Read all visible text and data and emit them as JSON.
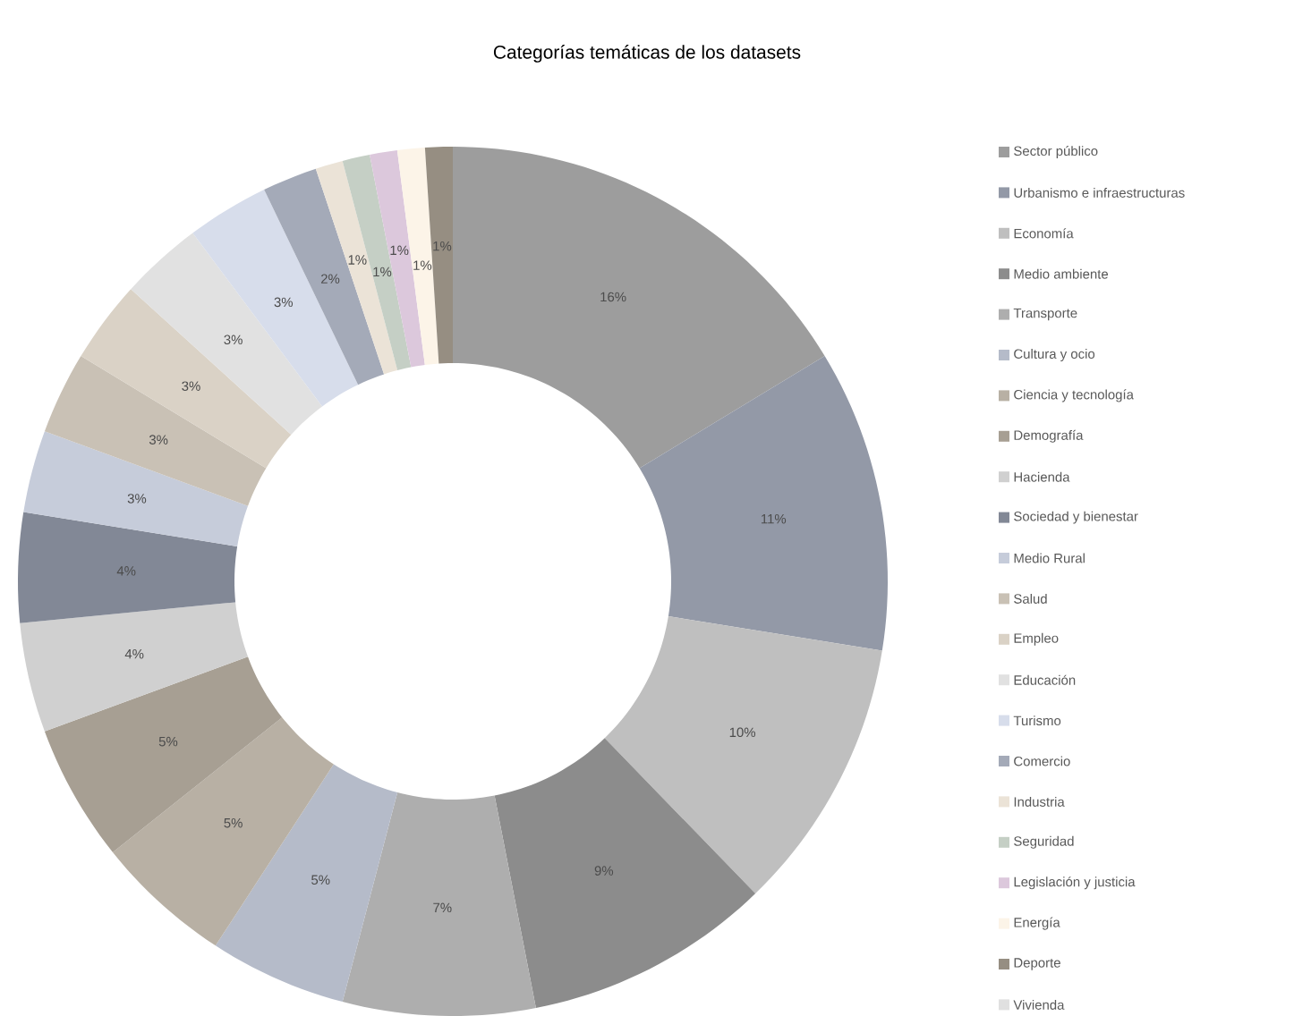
{
  "chart_data": {
    "type": "donut",
    "title": "Categorías temáticas de los datasets",
    "categories": [
      "Sector público",
      "Urbanismo e infraestructuras",
      "Economía",
      "Medio ambiente",
      "Transporte",
      "Cultura y ocio",
      "Ciencia y tecnología",
      "Demografía",
      "Hacienda",
      "Sociedad y bienestar",
      "Medio Rural",
      "Salud",
      "Empleo",
      "Educación",
      "Turismo",
      "Comercio",
      "Industria",
      "Seguridad",
      "Legislación y justicia",
      "Energía",
      "Deporte",
      "Vivienda"
    ],
    "values": [
      16,
      11,
      10,
      9,
      7,
      5,
      5,
      5,
      4,
      4,
      3,
      3,
      3,
      3,
      3,
      2,
      1,
      1,
      1,
      1,
      1,
      0
    ],
    "value_labels": [
      "16%",
      "11%",
      "10%",
      "9%",
      "7%",
      "5%",
      "5%",
      "5%",
      "4%",
      "4%",
      "3%",
      "3%",
      "3%",
      "3%",
      "3%",
      "2%",
      "1%",
      "1%",
      "1%",
      "1%",
      "1%",
      null
    ],
    "colors": [
      "#9d9d9d",
      "#9399a7",
      "#bfbfbf",
      "#8c8c8c",
      "#aeaeae",
      "#b5bbc9",
      "#b8b0a4",
      "#a79f93",
      "#d0d0d0",
      "#828896",
      "#c6ccda",
      "#c9c1b5",
      "#dad2c6",
      "#e1e1e1",
      "#d7ddeb",
      "#a4aab8",
      "#ebe3d7",
      "#c5cfc5",
      "#dcc8dc",
      "#fcf4e8",
      "#968e82",
      "#e0e0e0"
    ],
    "legend": "right"
  }
}
